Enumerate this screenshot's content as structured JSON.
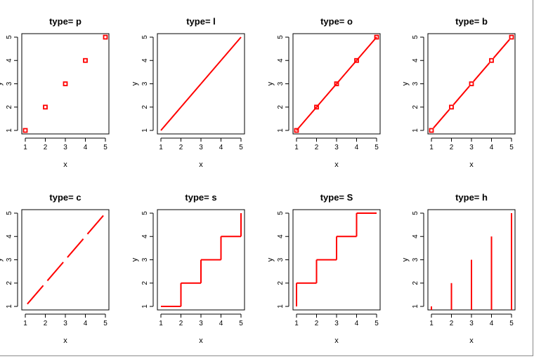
{
  "colors": {
    "series": "#ff0000",
    "axis": "#000000"
  },
  "chart_data": [
    {
      "type": "scatter",
      "plot_type": "p",
      "title": "type= p",
      "xlabel": "x",
      "ylabel": "y",
      "x": [
        1,
        2,
        3,
        4,
        5
      ],
      "y": [
        1,
        2,
        3,
        4,
        5
      ],
      "xlim": [
        1,
        5
      ],
      "ylim": [
        1,
        5
      ],
      "xticks": [
        "1",
        "2",
        "3",
        "4",
        "5"
      ],
      "yticks": [
        "1",
        "2",
        "3",
        "4",
        "5"
      ]
    },
    {
      "type": "line",
      "plot_type": "l",
      "title": "type= l",
      "xlabel": "x",
      "ylabel": "y",
      "x": [
        1,
        2,
        3,
        4,
        5
      ],
      "y": [
        1,
        2,
        3,
        4,
        5
      ],
      "xlim": [
        1,
        5
      ],
      "ylim": [
        1,
        5
      ],
      "xticks": [
        "1",
        "2",
        "3",
        "4",
        "5"
      ],
      "yticks": [
        "1",
        "2",
        "3",
        "4",
        "5"
      ]
    },
    {
      "type": "line",
      "plot_type": "o",
      "title": "type= o",
      "xlabel": "x",
      "ylabel": "y",
      "x": [
        1,
        2,
        3,
        4,
        5
      ],
      "y": [
        1,
        2,
        3,
        4,
        5
      ],
      "xlim": [
        1,
        5
      ],
      "ylim": [
        1,
        5
      ],
      "xticks": [
        "1",
        "2",
        "3",
        "4",
        "5"
      ],
      "yticks": [
        "1",
        "2",
        "3",
        "4",
        "5"
      ]
    },
    {
      "type": "line",
      "plot_type": "b",
      "title": "type= b",
      "xlabel": "x",
      "ylabel": "y",
      "x": [
        1,
        2,
        3,
        4,
        5
      ],
      "y": [
        1,
        2,
        3,
        4,
        5
      ],
      "xlim": [
        1,
        5
      ],
      "ylim": [
        1,
        5
      ],
      "xticks": [
        "1",
        "2",
        "3",
        "4",
        "5"
      ],
      "yticks": [
        "1",
        "2",
        "3",
        "4",
        "5"
      ]
    },
    {
      "type": "line",
      "plot_type": "c",
      "title": "type= c",
      "xlabel": "x",
      "ylabel": "y",
      "x": [
        1,
        2,
        3,
        4,
        5
      ],
      "y": [
        1,
        2,
        3,
        4,
        5
      ],
      "xlim": [
        1,
        5
      ],
      "ylim": [
        1,
        5
      ],
      "xticks": [
        "1",
        "2",
        "3",
        "4",
        "5"
      ],
      "yticks": [
        "1",
        "2",
        "3",
        "4",
        "5"
      ]
    },
    {
      "type": "line",
      "plot_type": "s",
      "title": "type= s",
      "xlabel": "x",
      "ylabel": "y",
      "x": [
        1,
        2,
        3,
        4,
        5
      ],
      "y": [
        1,
        2,
        3,
        4,
        5
      ],
      "xlim": [
        1,
        5
      ],
      "ylim": [
        1,
        5
      ],
      "xticks": [
        "1",
        "2",
        "3",
        "4",
        "5"
      ],
      "yticks": [
        "1",
        "2",
        "3",
        "4",
        "5"
      ]
    },
    {
      "type": "line",
      "plot_type": "S",
      "title": "type= S",
      "xlabel": "x",
      "ylabel": "y",
      "x": [
        1,
        2,
        3,
        4,
        5
      ],
      "y": [
        1,
        2,
        3,
        4,
        5
      ],
      "xlim": [
        1,
        5
      ],
      "ylim": [
        1,
        5
      ],
      "xticks": [
        "1",
        "2",
        "3",
        "4",
        "5"
      ],
      "yticks": [
        "1",
        "2",
        "3",
        "4",
        "5"
      ]
    },
    {
      "type": "bar",
      "plot_type": "h",
      "title": "type= h",
      "xlabel": "x",
      "ylabel": "y",
      "x": [
        1,
        2,
        3,
        4,
        5
      ],
      "y": [
        1,
        2,
        3,
        4,
        5
      ],
      "xlim": [
        1,
        5
      ],
      "ylim": [
        1,
        5
      ],
      "xticks": [
        "1",
        "2",
        "3",
        "4",
        "5"
      ],
      "yticks": [
        "1",
        "2",
        "3",
        "4",
        "5"
      ]
    }
  ]
}
